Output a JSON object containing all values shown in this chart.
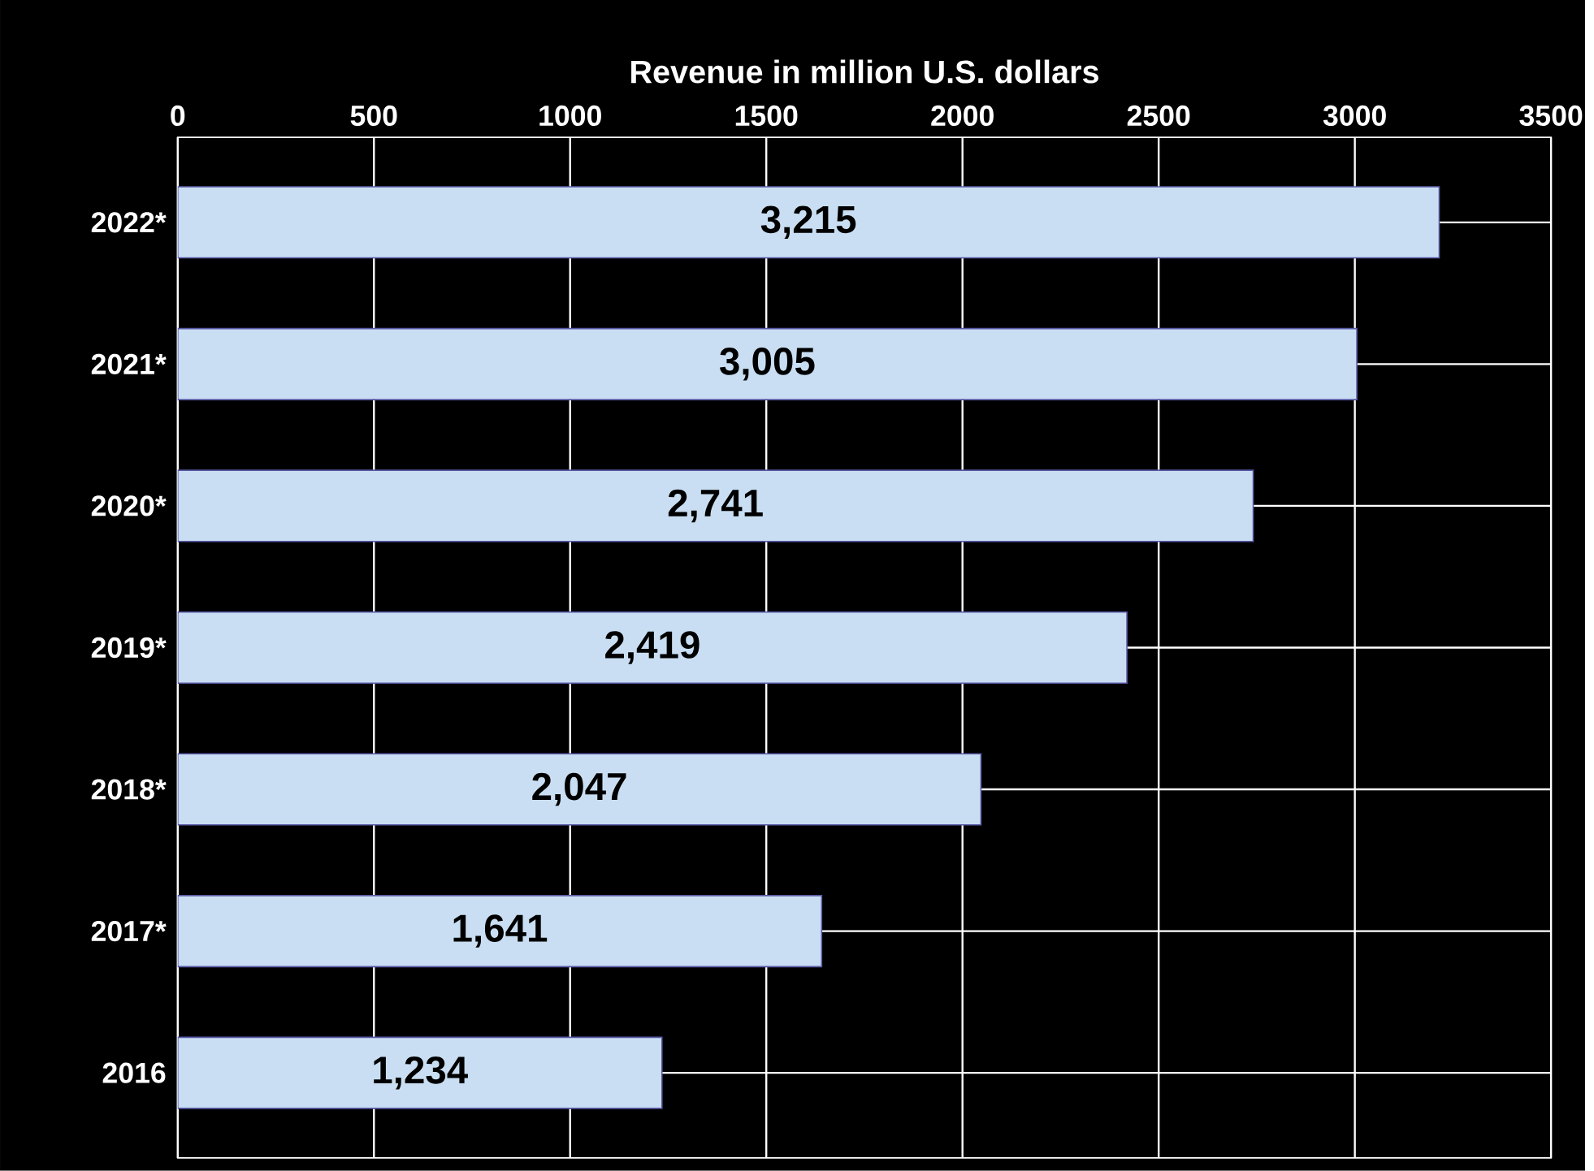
{
  "chart_data": {
    "type": "bar",
    "orientation": "horizontal",
    "xlabel": "Revenue in million U.S. dollars",
    "categories": [
      "2022*",
      "2021*",
      "2020*",
      "2019*",
      "2018*",
      "2017*",
      "2016"
    ],
    "values": [
      3215,
      3005,
      2741,
      2419,
      2047,
      1641,
      1234
    ],
    "value_labels": [
      "3,215",
      "3,005",
      "2,741",
      "2,419",
      "2,047",
      "1,641",
      "1,234"
    ],
    "color": "#c9def2",
    "xlim": [
      0,
      3500
    ],
    "xticks": [
      0,
      500,
      1000,
      1500,
      2000,
      2500,
      3000,
      3500
    ],
    "grid": true
  }
}
